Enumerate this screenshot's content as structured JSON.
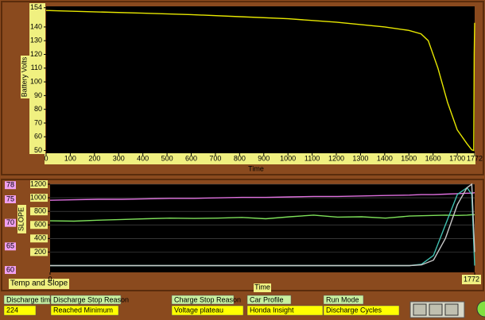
{
  "chart_data": [
    {
      "type": "line",
      "y_label": "Battery Volts",
      "x_label": "Time",
      "grid": false,
      "x": [
        0,
        200,
        400,
        600,
        800,
        1000,
        1200,
        1400,
        1500,
        1550,
        1580,
        1620,
        1660,
        1700,
        1740,
        1760,
        1768,
        1770,
        1772
      ],
      "series": [
        {
          "color": "#e8e800",
          "values": [
            152,
            151,
            150,
            149,
            147.5,
            146,
            143.5,
            140,
            137.5,
            135,
            130,
            110,
            85,
            65,
            55,
            50.5,
            50,
            120,
            143
          ]
        }
      ],
      "xlim": [
        0,
        1772
      ],
      "xticks": [
        0,
        100,
        200,
        300,
        400,
        500,
        600,
        700,
        800,
        900,
        1000,
        1100,
        1200,
        1300,
        1400,
        1500,
        1600,
        1700,
        1772
      ],
      "ylim": [
        48,
        155
      ],
      "yticks": [
        50,
        60,
        70,
        80,
        90,
        100,
        110,
        120,
        130,
        140,
        154
      ]
    },
    {
      "type": "line",
      "title": "Temp and Slope",
      "y_label": "SLOPE",
      "x_label": "Time",
      "grid": true,
      "x": [
        0,
        100,
        200,
        300,
        400,
        500,
        600,
        700,
        800,
        900,
        1000,
        1100,
        1200,
        1300,
        1400,
        1500,
        1550,
        1600,
        1650,
        1700,
        1740,
        1760,
        1772
      ],
      "series": [
        {
          "color": "#7ee05a",
          "values": [
            660,
            655,
            670,
            680,
            690,
            700,
            695,
            700,
            710,
            690,
            720,
            745,
            715,
            720,
            700,
            730,
            735,
            740,
            745,
            740,
            745,
            750,
            750
          ]
        },
        {
          "color": "#e070e0",
          "axis": "y2",
          "values": [
            74.8,
            74.9,
            75,
            75,
            75.1,
            75.2,
            75.2,
            75.3,
            75.4,
            75.4,
            75.5,
            75.6,
            75.6,
            75.7,
            75.8,
            75.9,
            76,
            76,
            76.1,
            76.2,
            76.3,
            76.3,
            76.4
          ]
        },
        {
          "color": "#40c0b0",
          "values": [
            0,
            0,
            0,
            0,
            0,
            0,
            0,
            0,
            0,
            0,
            0,
            0,
            0,
            0,
            0,
            0,
            20,
            150,
            600,
            1050,
            1150,
            1050,
            0
          ]
        },
        {
          "color": "#c8c8c8",
          "values": [
            0,
            0,
            0,
            0,
            0,
            0,
            0,
            0,
            0,
            0,
            0,
            0,
            0,
            0,
            0,
            0,
            10,
            80,
            400,
            900,
            1150,
            1200,
            200
          ]
        }
      ],
      "xlim": [
        0,
        1772
      ],
      "xticks": [
        0,
        1772
      ],
      "ylim": [
        -100,
        1200
      ],
      "yticks": [
        200,
        400,
        600,
        800,
        1000,
        1200
      ],
      "y2lim": [
        59.5,
        78.2
      ],
      "y2ticks": [
        60,
        65,
        70,
        75,
        78
      ]
    }
  ],
  "fields": [
    {
      "label": "Discharge time",
      "value": "224"
    },
    {
      "label": "Discharge Stop Reason",
      "value": "Reached Minimum"
    },
    {
      "label": "Charge Stop Reason",
      "value": "Voltage plateau"
    },
    {
      "label": "Car Profile",
      "value": "Honda Insight"
    },
    {
      "label": "Run Mode",
      "value": "Discharge Cycles"
    }
  ]
}
